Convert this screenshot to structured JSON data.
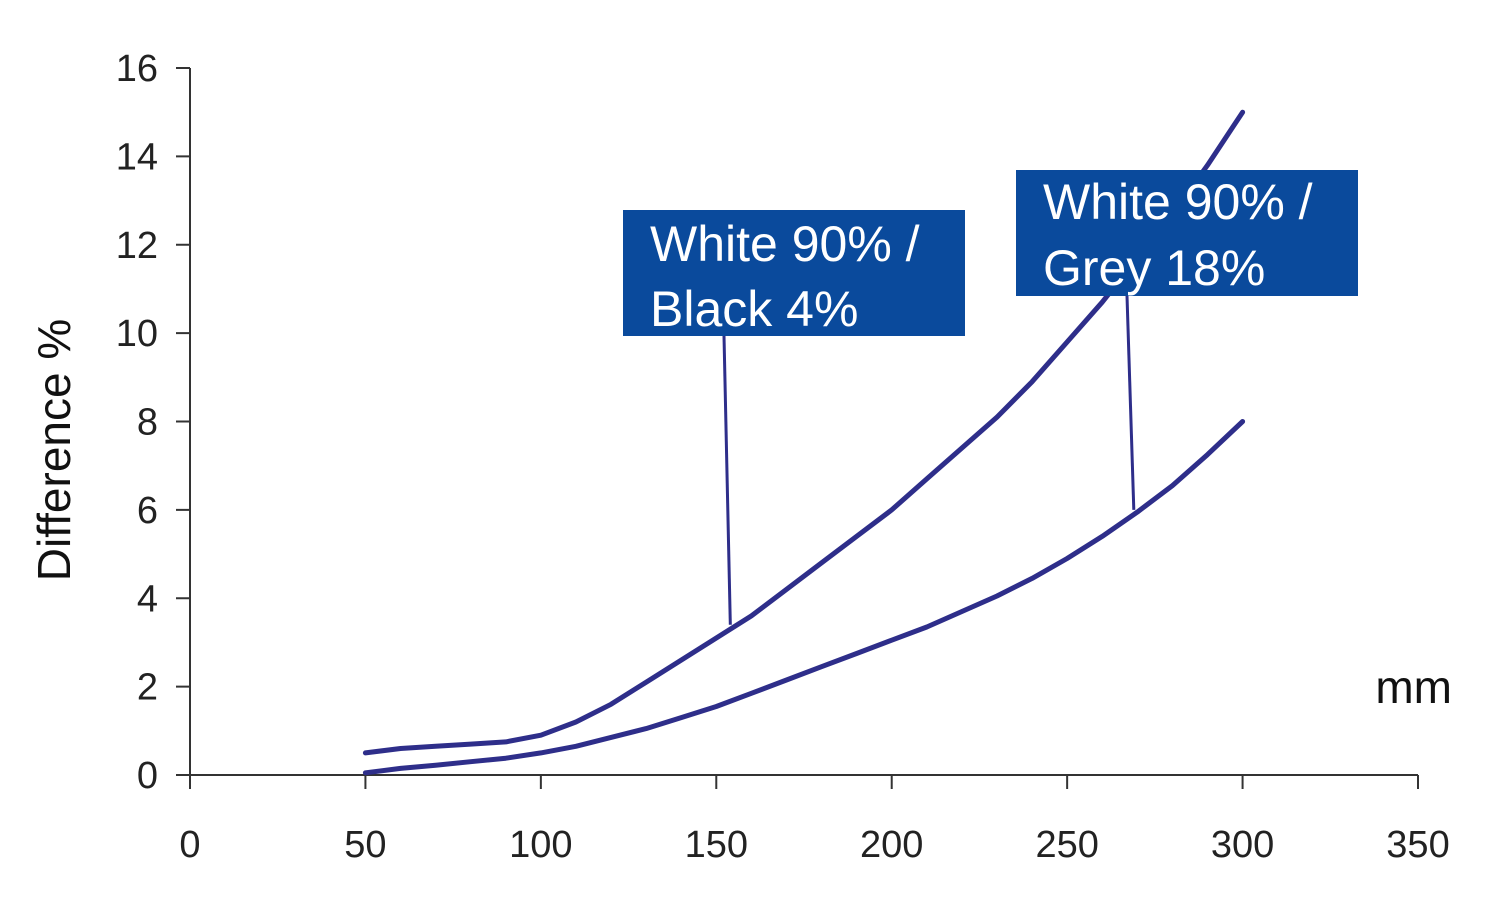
{
  "chart_data": {
    "type": "line",
    "title": "",
    "xlabel": "mm",
    "ylabel": "Difference %",
    "xlim": [
      0,
      350
    ],
    "ylim": [
      0,
      16
    ],
    "xticks": [
      0,
      50,
      100,
      150,
      200,
      250,
      300,
      350
    ],
    "yticks": [
      0,
      2,
      4,
      6,
      8,
      10,
      12,
      14,
      16
    ],
    "grid": false,
    "line_color": "#2e2e8a",
    "annotation_color": "#0a4a9c",
    "series": [
      {
        "x": [
          50,
          60,
          70,
          80,
          90,
          100,
          110,
          120,
          130,
          140,
          150,
          160,
          170,
          180,
          190,
          200,
          210,
          220,
          230,
          240,
          250,
          260,
          270,
          280,
          290,
          300
        ],
        "y": [
          0.5,
          0.6,
          0.65,
          0.7,
          0.75,
          0.9,
          1.2,
          1.6,
          2.1,
          2.6,
          3.1,
          3.6,
          4.2,
          4.8,
          5.4,
          6.0,
          6.7,
          7.4,
          8.1,
          8.9,
          9.8,
          10.7,
          11.7,
          12.7,
          13.8,
          15.0
        ]
      },
      {
        "x": [
          50,
          60,
          70,
          80,
          90,
          100,
          110,
          120,
          130,
          140,
          150,
          160,
          170,
          180,
          190,
          200,
          210,
          220,
          230,
          240,
          250,
          260,
          270,
          280,
          290,
          300
        ],
        "y": [
          0.05,
          0.15,
          0.22,
          0.3,
          0.38,
          0.5,
          0.65,
          0.85,
          1.05,
          1.3,
          1.55,
          1.85,
          2.15,
          2.45,
          2.75,
          3.05,
          3.35,
          3.7,
          4.05,
          4.45,
          4.9,
          5.4,
          5.95,
          6.55,
          7.25,
          8.0
        ]
      }
    ],
    "annotations": [
      {
        "lines": [
          "White 90% /",
          "Black 4%"
        ],
        "target": [
          154,
          3.4
        ]
      },
      {
        "lines": [
          "White 90% /",
          "Grey 18%"
        ],
        "target": [
          269,
          6.0
        ]
      }
    ]
  }
}
